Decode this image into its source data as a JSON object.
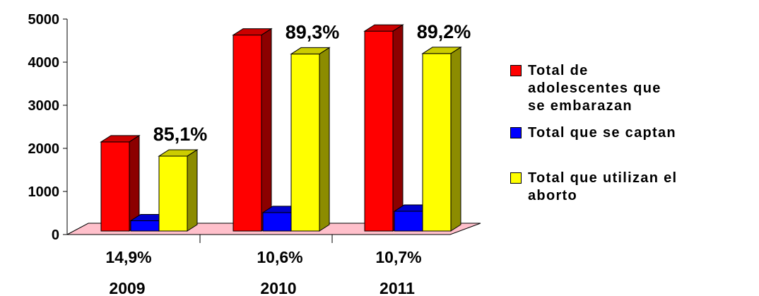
{
  "chart_data": {
    "type": "bar",
    "categories": [
      "2009",
      "2010",
      "2011"
    ],
    "percent_labels": [
      "14,9%",
      "10,6%",
      "10,7%"
    ],
    "series": [
      {
        "name": "Total de\nadolescentes que\nse  embarazan",
        "color": "#ff0000",
        "values": [
          2150,
          4630,
          4720
        ]
      },
      {
        "name": "Total que se captan",
        "color": "#0000ff",
        "values": [
          320,
          510,
          540
        ]
      },
      {
        "name": "Total que utilizan el\naborto",
        "color": "#ffff00",
        "values": [
          1820,
          4190,
          4200
        ]
      }
    ],
    "data_labels": [
      {
        "series": 2,
        "category": 0,
        "text": "85,1%"
      },
      {
        "series": 2,
        "category": 1,
        "text": "89,3%"
      },
      {
        "series": 2,
        "category": 2,
        "text": "89,2%"
      }
    ],
    "yticks": [
      0,
      1000,
      2000,
      3000,
      4000,
      5000
    ],
    "ylim": [
      0,
      5000
    ],
    "floor_color": "#ffc0cb",
    "legend_position": "right"
  }
}
